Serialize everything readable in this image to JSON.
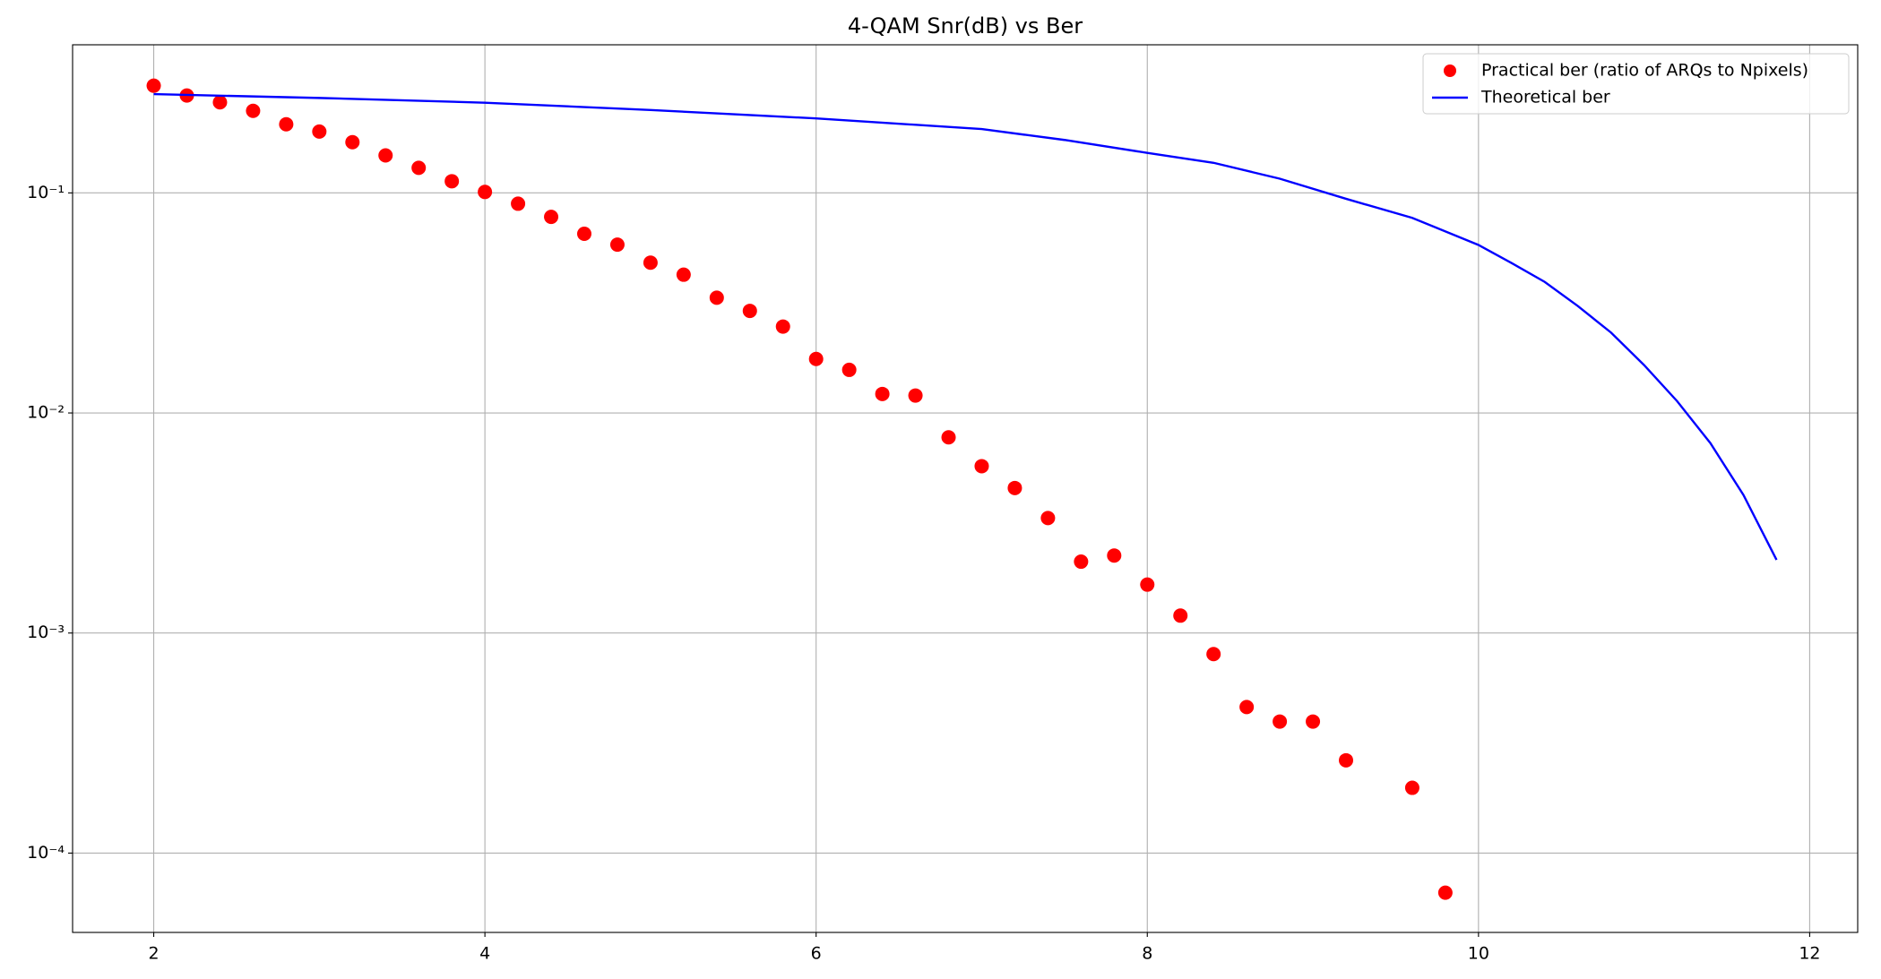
{
  "chart_data": {
    "type": "scatter-line",
    "title": "4-QAM Snr(dB) vs Ber",
    "yscale": "log",
    "grid": true,
    "legend": "upper right",
    "xlim": [
      1.51,
      12.29
    ],
    "ylim": [
      4.36e-05,
      0.471
    ],
    "xticks": [
      2,
      4,
      6,
      8,
      10,
      12
    ],
    "yticks": [
      {
        "value": 0.0001,
        "label": "10⁻⁴"
      },
      {
        "value": 0.001,
        "label": "10⁻³"
      },
      {
        "value": 0.01,
        "label": "10⁻²"
      },
      {
        "value": 0.1,
        "label": "10⁻¹"
      }
    ],
    "series": [
      {
        "name": "Practical ber (ratio of ARQs to Npixels)",
        "kind": "scatter",
        "color": "#ff0000",
        "x": [
          2,
          2.2,
          2.4,
          2.6,
          2.8,
          3,
          3.2,
          3.4,
          3.6,
          3.8,
          4,
          4.2,
          4.4,
          4.6,
          4.8,
          5,
          5.2,
          5.4,
          5.6,
          5.8,
          6,
          6.2,
          6.4,
          6.6,
          6.8,
          7,
          7.2,
          7.4,
          7.6,
          7.8,
          8,
          8.2,
          8.4,
          8.6,
          8.8,
          9,
          9.2,
          9.6,
          9.8
        ],
        "values": [
          0.307,
          0.277,
          0.258,
          0.236,
          0.205,
          0.19,
          0.17,
          0.148,
          0.13,
          0.113,
          0.101,
          0.0893,
          0.0778,
          0.0652,
          0.0582,
          0.0482,
          0.0425,
          0.0334,
          0.0291,
          0.0247,
          0.0176,
          0.0157,
          0.0122,
          0.012,
          0.00775,
          0.00573,
          0.00456,
          0.00333,
          0.00211,
          0.00225,
          0.00166,
          0.0012,
          0.000802,
          0.000461,
          0.000396,
          0.000396,
          0.000264,
          0.000198,
          6.61e-05
        ]
      },
      {
        "name": "Theoretical ber",
        "kind": "line",
        "color": "#0000ff",
        "x": [
          2,
          3,
          4,
          5,
          6,
          7,
          7.5,
          8,
          8.4,
          8.8,
          9.2,
          9.6,
          10,
          10.2,
          10.4,
          10.6,
          10.8,
          11,
          11.2,
          11.4,
          11.6,
          11.8
        ],
        "values": [
          0.281,
          0.27,
          0.257,
          0.238,
          0.218,
          0.195,
          0.174,
          0.152,
          0.137,
          0.116,
          0.094,
          0.077,
          0.058,
          0.048,
          0.0394,
          0.0306,
          0.0232,
          0.0165,
          0.0113,
          0.0073,
          0.00424,
          0.00215
        ]
      }
    ]
  }
}
